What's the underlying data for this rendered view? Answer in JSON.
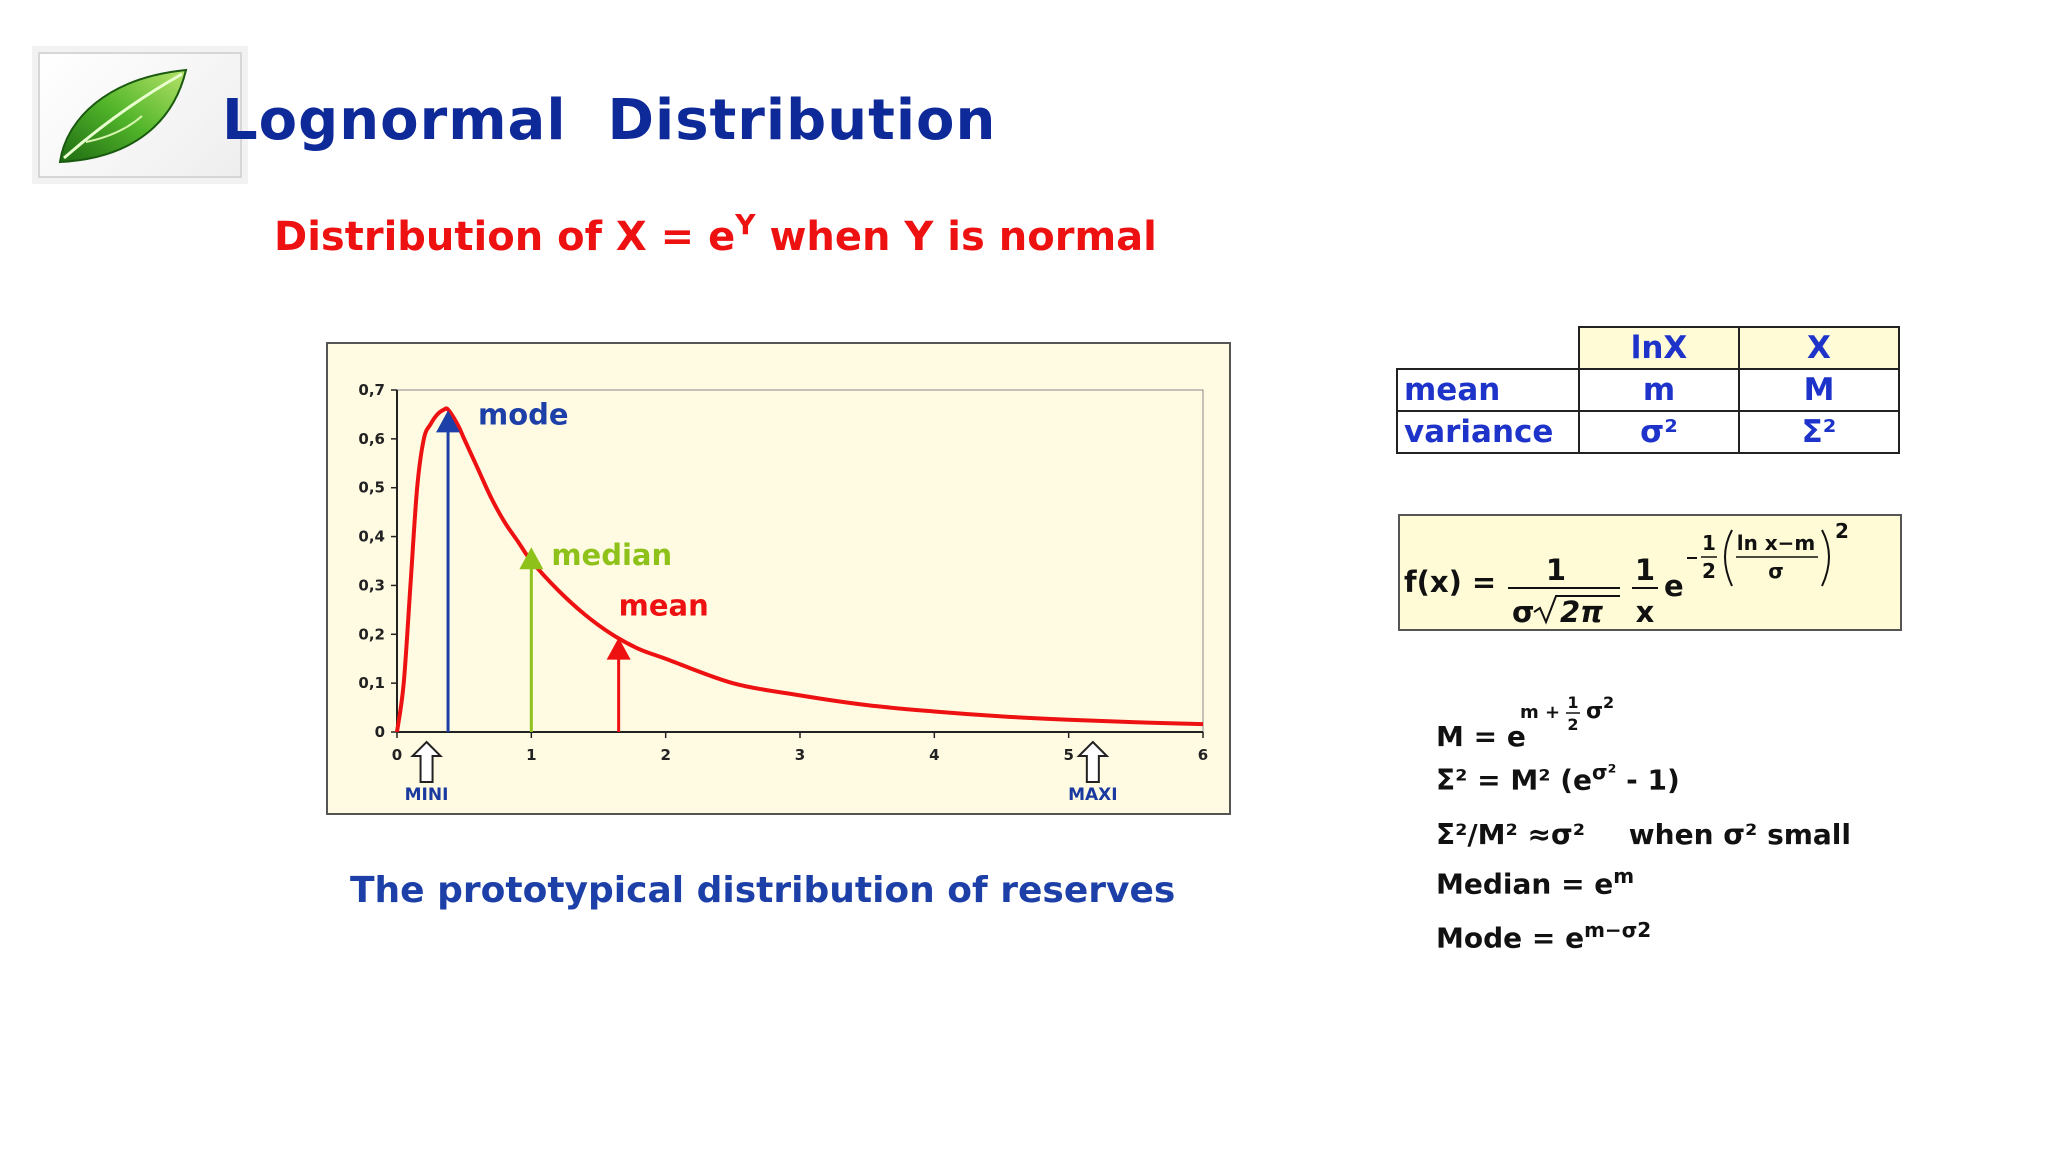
{
  "slide": {
    "title": "Lognormal  Distribution",
    "subtitle_pre": "Distribution of X = e",
    "subtitle_sup": "Y",
    "subtitle_post": " when Y is normal",
    "caption": "The prototypical distribution of reserves"
  },
  "colors": {
    "title": "#0e2a99",
    "subtitle": "#ee1111",
    "curve": "#ee1111",
    "mode": "#1d3fa8",
    "median": "#8ec21a",
    "mean": "#ee1111",
    "table_text": "#1d33c9",
    "chart_bg": "#fffbe3"
  },
  "icons": {
    "logo": "green-leaf-icon",
    "range_marker": "hollow-up-arrow-icon"
  },
  "chart_data": {
    "type": "line",
    "title": "",
    "xlabel": "",
    "ylabel": "",
    "xlim": [
      0,
      6
    ],
    "ylim": [
      0,
      0.7
    ],
    "x_ticks": [
      "0",
      "1",
      "2",
      "3",
      "4",
      "5",
      "6"
    ],
    "y_ticks": [
      "0",
      "0,1",
      "0,2",
      "0,3",
      "0,4",
      "0,5",
      "0,6",
      "0,7"
    ],
    "grid": false,
    "series": [
      {
        "x": [
          0,
          0.05,
          0.1,
          0.15,
          0.2,
          0.25,
          0.3,
          0.35,
          0.38,
          0.45,
          0.5,
          0.6,
          0.7,
          0.8,
          0.9,
          1.0,
          1.2,
          1.4,
          1.6,
          1.8,
          2.0,
          2.5,
          3.0,
          3.5,
          4.0,
          4.5,
          5.0,
          5.5,
          6.0
        ],
        "y": [
          0,
          0.1,
          0.3,
          0.5,
          0.6,
          0.63,
          0.65,
          0.66,
          0.66,
          0.63,
          0.6,
          0.54,
          0.48,
          0.43,
          0.39,
          0.35,
          0.29,
          0.24,
          0.2,
          0.17,
          0.15,
          0.1,
          0.075,
          0.055,
          0.042,
          0.032,
          0.025,
          0.02,
          0.016
        ]
      }
    ],
    "annotations": [
      {
        "label": "mode",
        "x": 0.38,
        "y": 0.65
      },
      {
        "label": "median",
        "x": 1.0,
        "y": 0.37
      },
      {
        "label": "mean",
        "x": 1.65,
        "y": 0.185
      }
    ],
    "range_markers": [
      {
        "label": "MINI",
        "x": 0.22
      },
      {
        "label": "MAXI",
        "x": 5.18
      }
    ]
  },
  "stats_table": {
    "columns": [
      "",
      "lnX",
      "X"
    ],
    "rows": [
      [
        "mean",
        "m",
        "M"
      ],
      [
        "variance",
        "σ²",
        "Σ²"
      ]
    ]
  },
  "pdf_formula": {
    "lhs": "f(x) =",
    "num1": "1",
    "den1_sigma": "σ",
    "den1_root": "2π",
    "num2": "1",
    "den2": "x",
    "e": "e",
    "exp_half_num": "1",
    "exp_half_den": "2",
    "exp_inner_num": "ln x−m",
    "exp_inner_den": "σ",
    "exp_power": "2"
  },
  "relations": {
    "mean_lhs": "M = e",
    "mean_exp_m": "m +",
    "mean_exp_half_num": "1",
    "mean_exp_half_den": "2",
    "mean_exp_sigma": "σ",
    "mean_exp_pow": "2",
    "variance_text": "Σ² = M² (e",
    "variance_exp": "σ²",
    "variance_tail": " - 1)",
    "ratio_text": "Σ²/M² ≈σ²",
    "ratio_cond": "when  σ² small",
    "median_text": "Median = e",
    "median_exp": "m",
    "mode_text": "Mode = e",
    "mode_exp": "m−σ2"
  }
}
